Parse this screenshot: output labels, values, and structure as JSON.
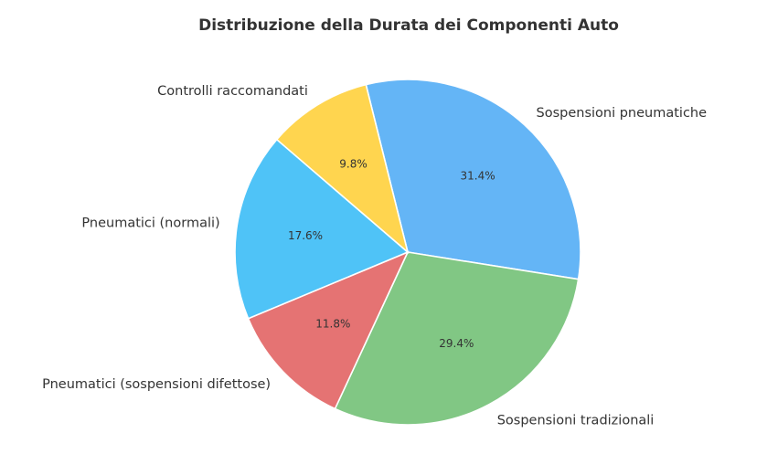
{
  "chart_data": {
    "type": "pie",
    "title": "Distribuzione della Durata dei Componenti Auto",
    "slices": [
      {
        "label": "Sospensioni pneumatiche",
        "value": 31.4,
        "pct_label": "31.4%",
        "color": "#64b5f6"
      },
      {
        "label": "Sospensioni tradizionali",
        "value": 29.4,
        "pct_label": "29.4%",
        "color": "#81c784"
      },
      {
        "label": "Pneumatici (sospensioni difettose)",
        "value": 11.8,
        "pct_label": "11.8%",
        "color": "#e57373"
      },
      {
        "label": "Pneumatici (normali)",
        "value": 17.6,
        "pct_label": "17.6%",
        "color": "#4fc3f7"
      },
      {
        "label": "Controlli raccomandati",
        "value": 9.8,
        "pct_label": "9.8%",
        "color": "#ffd54f"
      }
    ],
    "start_angle_deg": 104,
    "direction": "clockwise",
    "legend": "none"
  }
}
